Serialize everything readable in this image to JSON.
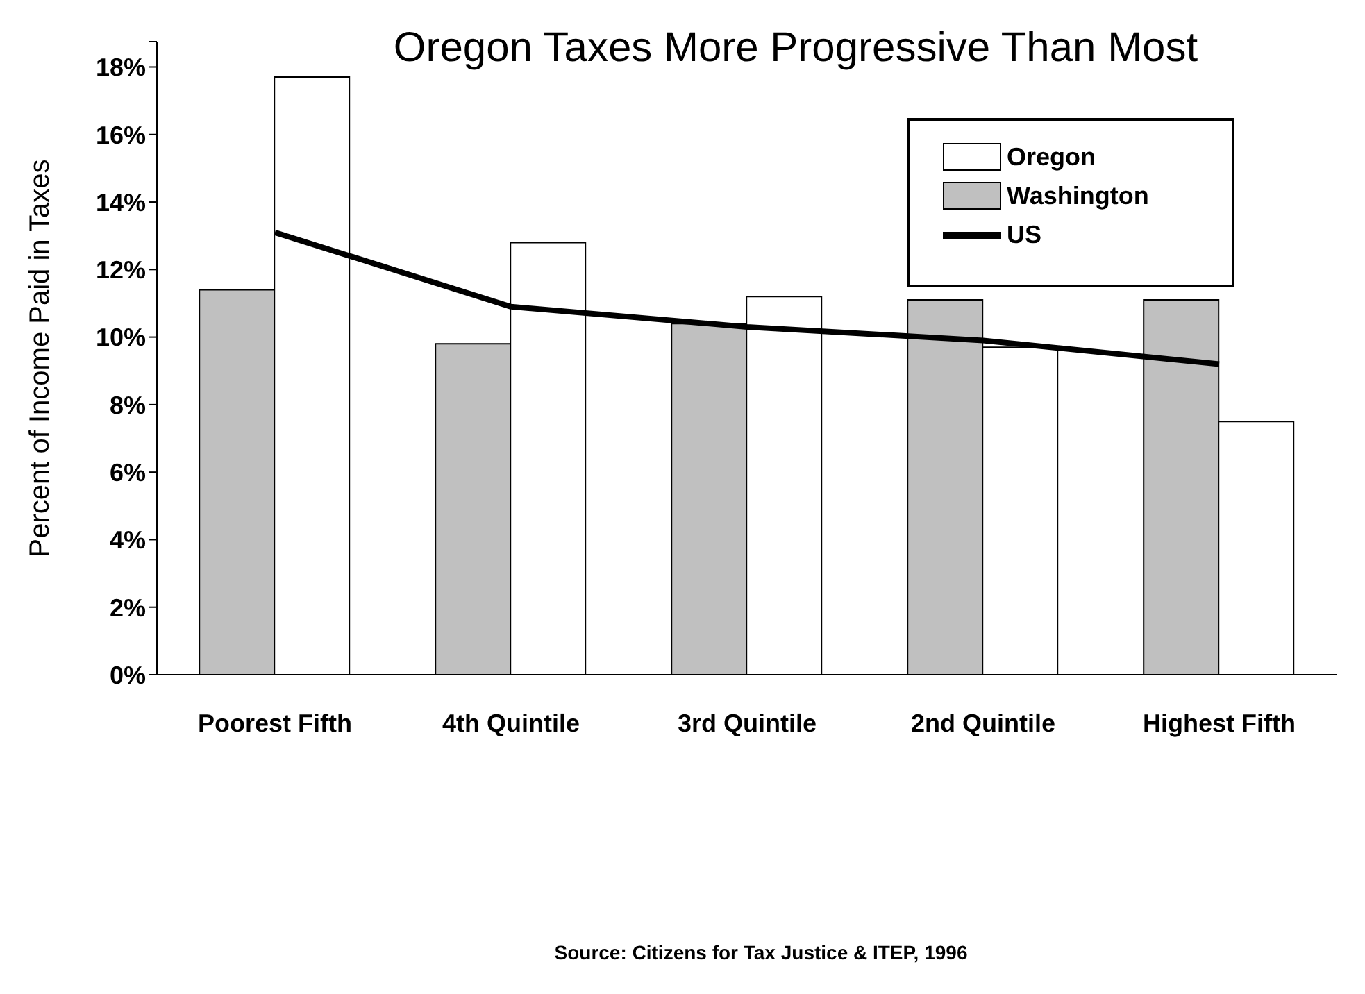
{
  "chart_data": {
    "type": "bar",
    "title": "Oregon Taxes More Progressive Than Most",
    "ylabel": "Percent of Income Paid in Taxes",
    "categories": [
      "Poorest Fifth",
      "4th Quintile",
      "3rd Quintile",
      "2nd Quintile",
      "Highest Fifth"
    ],
    "series": [
      {
        "name": "Oregon",
        "color": "#ffffff",
        "values": [
          17.7,
          12.8,
          11.2,
          9.7,
          7.5
        ]
      },
      {
        "name": "Washington",
        "color": "#c0c0c0",
        "values": [
          11.4,
          9.8,
          10.4,
          11.1,
          11.1
        ]
      },
      {
        "name": "US",
        "type": "line",
        "color": "#000000",
        "values": [
          13.1,
          10.9,
          10.3,
          9.9,
          9.2
        ]
      }
    ],
    "ylim": [
      0,
      18.75
    ],
    "yticks": [
      {
        "value": 0,
        "label": "0%"
      },
      {
        "value": 2,
        "label": "2%"
      },
      {
        "value": 4,
        "label": "4%"
      },
      {
        "value": 6,
        "label": "6%"
      },
      {
        "value": 8,
        "label": "8%"
      },
      {
        "value": 10,
        "label": "10%"
      },
      {
        "value": 12,
        "label": "12%"
      },
      {
        "value": 14,
        "label": "14%"
      },
      {
        "value": 16,
        "label": "16%"
      },
      {
        "value": 18,
        "label": "18%"
      },
      {
        "value": 18.75,
        "label": null
      }
    ],
    "grid": false,
    "legend": "top right",
    "marker": "none",
    "line_style": "solid",
    "annotations": [
      "Source: Citizens for Tax Justice & ITEP, 1996"
    ]
  }
}
